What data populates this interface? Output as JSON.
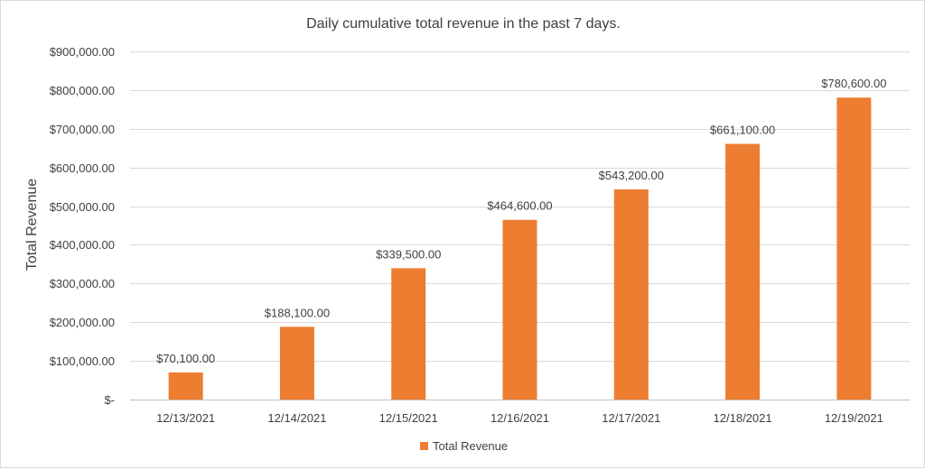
{
  "chart_data": {
    "type": "bar",
    "title": "Daily cumulative total revenue in the past 7 days.",
    "xlabel": "",
    "ylabel": "Total Revenue",
    "categories": [
      "12/13/2021",
      "12/14/2021",
      "12/15/2021",
      "12/16/2021",
      "12/17/2021",
      "12/18/2021",
      "12/19/2021"
    ],
    "series": [
      {
        "name": "Total Revenue",
        "color": "#ED7D31",
        "values": [
          70100,
          188100,
          339500,
          464600,
          543200,
          661100,
          780600
        ],
        "data_labels": [
          "$70,100.00",
          "$188,100.00",
          "$339,500.00",
          "$464,600.00",
          "$543,200.00",
          "$661,100.00",
          "$780,600.00"
        ]
      }
    ],
    "ylim": [
      0,
      900000
    ],
    "y_ticks": [
      0,
      100000,
      200000,
      300000,
      400000,
      500000,
      600000,
      700000,
      800000,
      900000
    ],
    "y_tick_labels": [
      "$-",
      "$100,000.00",
      "$200,000.00",
      "$300,000.00",
      "$400,000.00",
      "$500,000.00",
      "$600,000.00",
      "$700,000.00",
      "$800,000.00",
      "$900,000.00"
    ],
    "grid": true,
    "legend_position": "bottom"
  }
}
